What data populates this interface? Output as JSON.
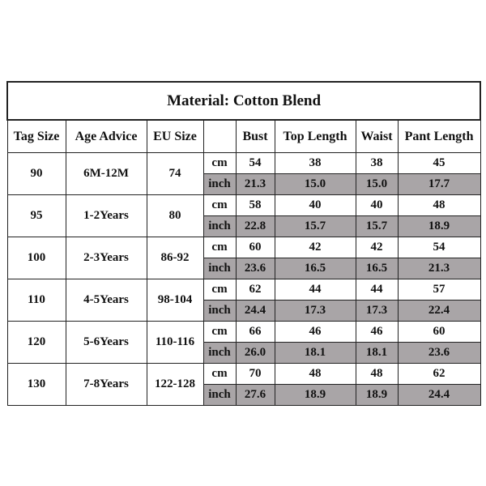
{
  "title": "Material: Cotton Blend",
  "table": {
    "header": [
      "Tag Size",
      "Age Advice",
      "EU Size",
      "Bust",
      "Top Length",
      "Waist",
      "Pant Length"
    ],
    "rows": [
      {
        "tag": "90",
        "age": "6M-12M",
        "eu": "74",
        "cm": [
          "cm",
          "54",
          "38",
          "38",
          "45"
        ],
        "inch": [
          "inch",
          "21.3",
          "15.0",
          "15.0",
          "17.7"
        ]
      },
      {
        "tag": "95",
        "age": "1-2Years",
        "eu": "80",
        "cm": [
          "cm",
          "58",
          "40",
          "40",
          "48"
        ],
        "inch": [
          "inch",
          "22.8",
          "15.7",
          "15.7",
          "18.9"
        ]
      },
      {
        "tag": "100",
        "age": "2-3Years",
        "eu": "86-92",
        "cm": [
          "cm",
          "60",
          "42",
          "42",
          "54"
        ],
        "inch": [
          "inch",
          "23.6",
          "16.5",
          "16.5",
          "21.3"
        ]
      },
      {
        "tag": "110",
        "age": "4-5Years",
        "eu": "98-104",
        "cm": [
          "cm",
          "62",
          "44",
          "44",
          "57"
        ],
        "inch": [
          "inch",
          "24.4",
          "17.3",
          "17.3",
          "22.4"
        ]
      },
      {
        "tag": "120",
        "age": "5-6Years",
        "eu": "110-116",
        "cm": [
          "cm",
          "66",
          "46",
          "46",
          "60"
        ],
        "inch": [
          "inch",
          "26.0",
          "18.1",
          "18.1",
          "23.6"
        ]
      },
      {
        "tag": "130",
        "age": "7-8Years",
        "eu": "122-128",
        "cm": [
          "cm",
          "70",
          "48",
          "48",
          "62"
        ],
        "inch": [
          "inch",
          "27.6",
          "18.9",
          "18.9",
          "24.4"
        ]
      }
    ]
  }
}
